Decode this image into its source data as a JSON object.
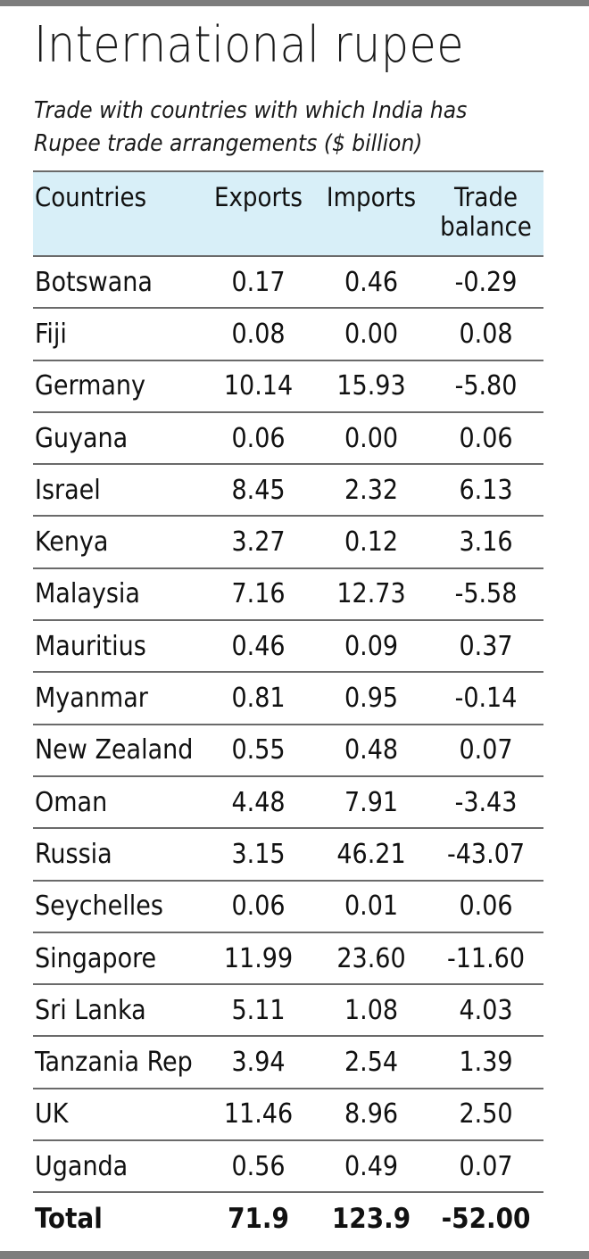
{
  "title": "International rupee",
  "subtitle": "Trade with countries with which India has Rupee trade arrangements ($ billion)",
  "table": {
    "headers": [
      "Countries",
      "Exports",
      "Imports",
      "Trade balance"
    ],
    "rows": [
      [
        "Botswana",
        "0.17",
        "0.46",
        "-0.29"
      ],
      [
        "Fiji",
        "0.08",
        "0.00",
        "0.08"
      ],
      [
        "Germany",
        "10.14",
        "15.93",
        "-5.80"
      ],
      [
        "Guyana",
        "0.06",
        "0.00",
        "0.06"
      ],
      [
        "Israel",
        "8.45",
        "2.32",
        "6.13"
      ],
      [
        "Kenya",
        "3.27",
        "0.12",
        "3.16"
      ],
      [
        "Malaysia",
        "7.16",
        "12.73",
        "-5.58"
      ],
      [
        "Mauritius",
        "0.46",
        "0.09",
        "0.37"
      ],
      [
        "Myanmar",
        "0.81",
        "0.95",
        "-0.14"
      ],
      [
        "New Zealand",
        "0.55",
        "0.48",
        "0.07"
      ],
      [
        "Oman",
        "4.48",
        "7.91",
        "-3.43"
      ],
      [
        "Russia",
        "3.15",
        "46.21",
        "-43.07"
      ],
      [
        "Seychelles",
        "0.06",
        "0.01",
        "0.06"
      ],
      [
        "Singapore",
        "11.99",
        "23.60",
        "-11.60"
      ],
      [
        "Sri Lanka",
        "5.11",
        "1.08",
        "4.03"
      ],
      [
        "Tanzania Rep",
        "3.94",
        "2.54",
        "1.39"
      ],
      [
        "UK",
        "11.46",
        "8.96",
        "2.50"
      ],
      [
        "Uganda",
        "0.56",
        "0.49",
        "0.07"
      ]
    ],
    "total": [
      "Total",
      "71.9",
      "123.9",
      "-52.00"
    ]
  },
  "colors": {
    "header_bg": "#d8eff8",
    "rule": "#7d7d7d"
  }
}
